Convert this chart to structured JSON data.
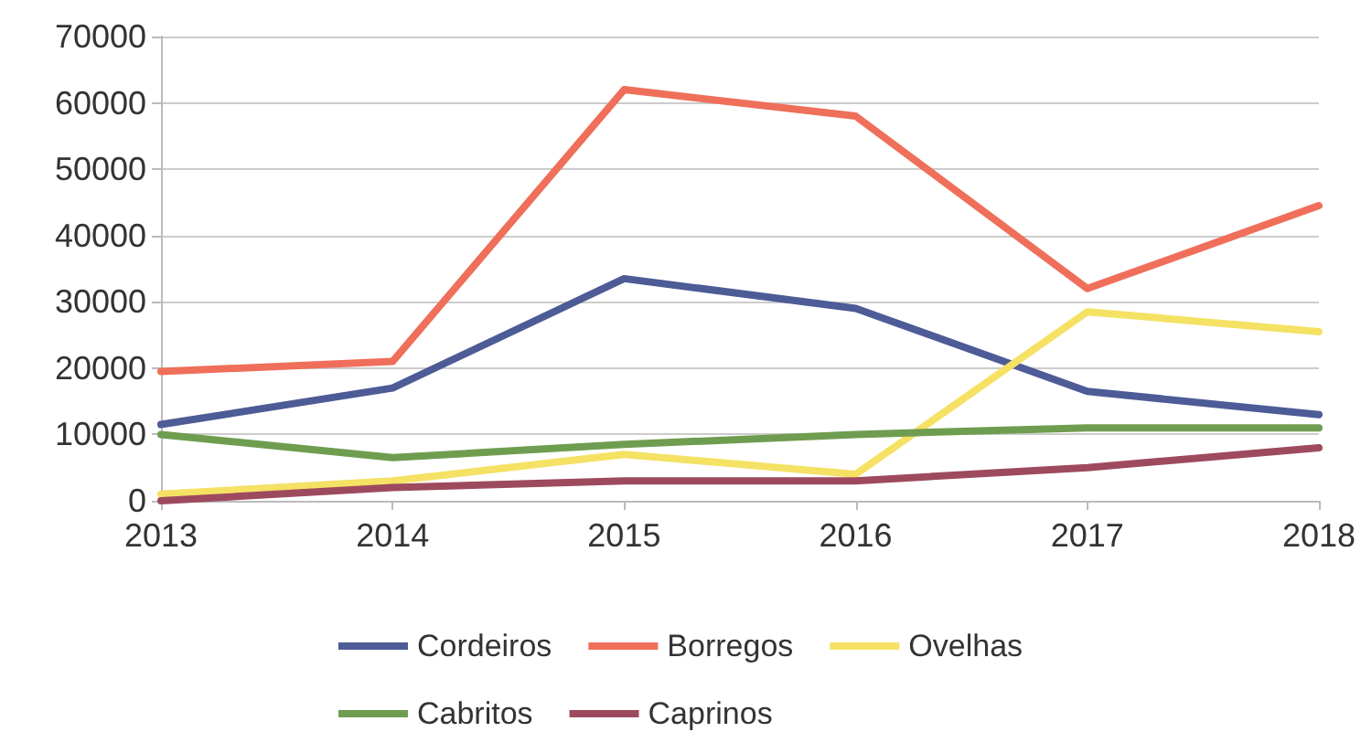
{
  "chart_data": {
    "type": "line",
    "categories": [
      "2013",
      "2014",
      "2015",
      "2016",
      "2017",
      "2018"
    ],
    "series": [
      {
        "name": "Cordeiros",
        "color": "#4d5b96",
        "values": [
          11500,
          17000,
          33500,
          29000,
          16500,
          13000
        ]
      },
      {
        "name": "Borregos",
        "color": "#ef6f5a",
        "values": [
          19500,
          21000,
          62000,
          58000,
          32000,
          44500
        ]
      },
      {
        "name": "Ovelhas",
        "color": "#f5e163",
        "values": [
          1000,
          3000,
          7000,
          4000,
          28500,
          25500
        ]
      },
      {
        "name": "Cabritos",
        "color": "#6f9d50",
        "values": [
          10000,
          6500,
          8500,
          10000,
          11000,
          11000
        ]
      },
      {
        "name": "Caprinos",
        "color": "#9e4a5e",
        "values": [
          0,
          2000,
          3000,
          3000,
          5000,
          8000
        ]
      }
    ],
    "ylim": [
      0,
      70000
    ],
    "yticks": [
      0,
      10000,
      20000,
      30000,
      40000,
      50000,
      60000,
      70000
    ],
    "grid": "y",
    "legend": "bottom",
    "marker": "none",
    "line_style": "solid"
  }
}
